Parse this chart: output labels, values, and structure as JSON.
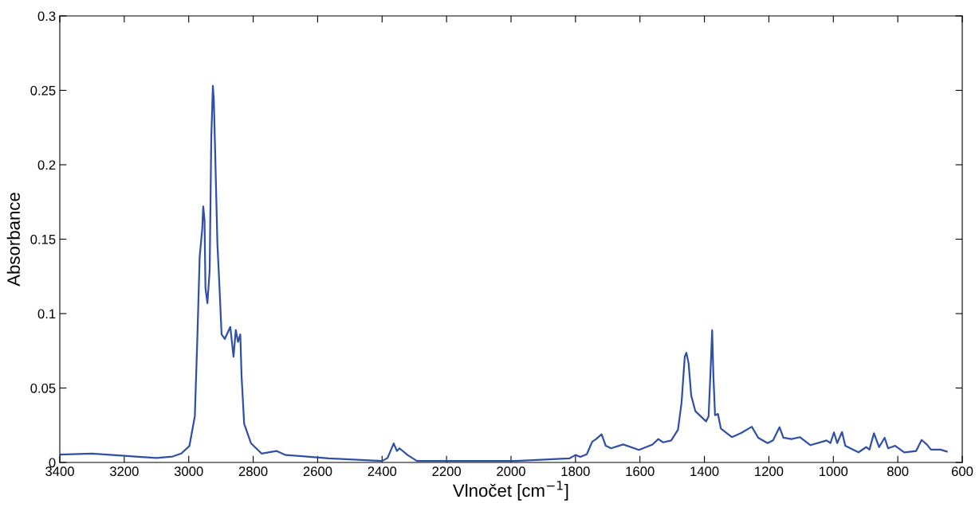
{
  "chart_data": {
    "type": "line",
    "xlabel": "Vlnočet [cm$^{−1}$]",
    "ylabel": "Absorbance",
    "xlim": [
      3400,
      600
    ],
    "ylim": [
      0,
      0.3
    ],
    "xticks": [
      3400,
      3200,
      3000,
      2800,
      2600,
      2400,
      2200,
      2000,
      1800,
      1600,
      1400,
      1200,
      1000,
      800,
      600
    ],
    "yticks": [
      0,
      0.05,
      0.1,
      0.15,
      0.2,
      0.25,
      0.3
    ],
    "grid": false,
    "legend": false,
    "marker": "none",
    "line_style": "solid",
    "series": [
      {
        "color": "#3050a8",
        "x": [
          3400,
          3300,
          3200,
          3148,
          3100,
          3050,
          3023,
          2998,
          2981,
          2973,
          2966,
          2958,
          2955,
          2951,
          2948,
          2942,
          2935,
          2930,
          2925,
          2922,
          2918,
          2911,
          2905,
          2898,
          2888,
          2871,
          2861,
          2854,
          2847,
          2840,
          2836,
          2828,
          2807,
          2774,
          2728,
          2699,
          2649,
          2566,
          2400,
          2383,
          2364,
          2354,
          2346,
          2321,
          2292,
          1985,
          1819,
          1800,
          1785,
          1765,
          1748,
          1736,
          1719,
          1706,
          1690,
          1652,
          1603,
          1561,
          1543,
          1528,
          1503,
          1482,
          1471,
          1461,
          1456,
          1449,
          1441,
          1428,
          1395,
          1387,
          1380,
          1376,
          1372,
          1367,
          1358,
          1349,
          1315,
          1286,
          1253,
          1233,
          1204,
          1187,
          1167,
          1155,
          1130,
          1104,
          1071,
          1021,
          1009,
          998,
          988,
          973,
          963,
          922,
          898,
          888,
          874,
          858,
          841,
          830,
          808,
          780,
          743,
          726,
          710,
          697,
          668,
          648
        ],
        "values": [
          0.0053,
          0.006,
          0.0045,
          0.0037,
          0.003,
          0.004,
          0.006,
          0.011,
          0.031,
          0.085,
          0.138,
          0.157,
          0.172,
          0.163,
          0.117,
          0.107,
          0.129,
          0.218,
          0.253,
          0.243,
          0.209,
          0.147,
          0.12,
          0.086,
          0.083,
          0.091,
          0.071,
          0.089,
          0.081,
          0.086,
          0.058,
          0.026,
          0.013,
          0.006,
          0.0077,
          0.005,
          0.0042,
          0.0027,
          0.001,
          0.003,
          0.0128,
          0.0077,
          0.0095,
          0.005,
          0.001,
          0.001,
          0.0027,
          0.005,
          0.0037,
          0.0055,
          0.014,
          0.0157,
          0.0189,
          0.0112,
          0.0095,
          0.0121,
          0.0084,
          0.012,
          0.0157,
          0.0135,
          0.0148,
          0.022,
          0.04,
          0.071,
          0.0737,
          0.0665,
          0.045,
          0.0344,
          0.0276,
          0.031,
          0.0665,
          0.0888,
          0.0576,
          0.0317,
          0.0326,
          0.0228,
          0.017,
          0.0198,
          0.024,
          0.0166,
          0.013,
          0.0148,
          0.0237,
          0.0166,
          0.0157,
          0.017,
          0.0116,
          0.0148,
          0.013,
          0.0202,
          0.013,
          0.0205,
          0.0112,
          0.0068,
          0.0103,
          0.0086,
          0.0196,
          0.0103,
          0.0166,
          0.0095,
          0.0112,
          0.0068,
          0.0077,
          0.0151,
          0.0121,
          0.0086,
          0.0086,
          0.0073
        ]
      }
    ]
  }
}
